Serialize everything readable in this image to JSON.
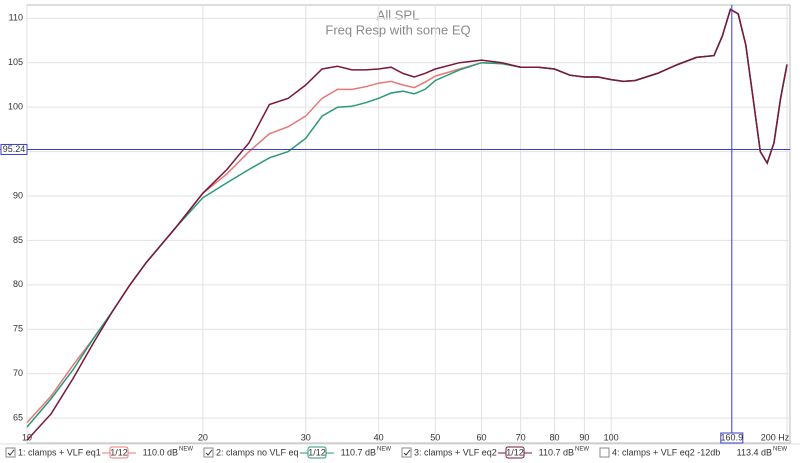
{
  "chart_data": {
    "type": "line",
    "title": "All SPL",
    "subtitle": "Freq Resp with some EQ",
    "log_x": true,
    "grid": true,
    "x": [
      10,
      11,
      12,
      13,
      14,
      15,
      16,
      18,
      20,
      22,
      24,
      26,
      28,
      30,
      32,
      34,
      36,
      38,
      40,
      42,
      44,
      46,
      48,
      50,
      55,
      60,
      65,
      70,
      75,
      80,
      85,
      90,
      95,
      100,
      105,
      110,
      120,
      130,
      140,
      150,
      155,
      160,
      165,
      170,
      175,
      180,
      185,
      190,
      195,
      200
    ],
    "xlim": [
      10,
      200
    ],
    "ylim": [
      62.2,
      111.5
    ],
    "xticks": [
      10,
      20,
      30,
      40,
      50,
      60,
      70,
      80,
      90,
      100,
      {
        "value": 200,
        "label": "200 Hz"
      }
    ],
    "yticks": [
      65,
      70,
      75,
      80,
      85,
      90,
      95,
      100,
      105,
      110
    ],
    "cursor": {
      "x": 160.9,
      "y": 95.24,
      "color": "#3c3cc8"
    },
    "series": [
      {
        "name": "1: clamps + VLF eq1",
        "color": "#e87878",
        "checked": true,
        "smoothing": "1/12",
        "level_label": "110.0 dB",
        "level_tag": "NEW",
        "values": [
          64.5,
          67.5,
          71,
          74,
          77,
          80,
          82.5,
          86.5,
          90.3,
          92.5,
          95,
          97,
          97.8,
          99,
          101,
          102,
          102,
          102.3,
          102.7,
          102.9,
          102.5,
          102.2,
          102.8,
          103.5,
          104.3,
          105,
          104.9,
          104.5,
          104.5,
          104.3,
          103.6,
          103.4,
          103.4,
          103.1,
          102.9,
          103,
          103.8,
          104.8,
          105.6,
          105.8,
          108,
          111,
          110.5,
          107,
          101,
          95,
          93.7,
          96,
          101,
          104.8
        ]
      },
      {
        "name": "2: clamps  no VLF eq",
        "color": "#2a9a78",
        "checked": true,
        "smoothing": "1/12",
        "level_label": "110.7 dB",
        "level_tag": "NEW",
        "values": [
          64,
          67.2,
          70.5,
          74,
          77,
          80,
          82.5,
          86.5,
          89.8,
          91.5,
          93,
          94.3,
          95,
          96.5,
          99,
          100,
          100.1,
          100.5,
          101,
          101.6,
          101.8,
          101.5,
          102,
          103,
          104.2,
          105,
          104.9,
          104.5,
          104.5,
          104.3,
          103.6,
          103.4,
          103.4,
          103.1,
          102.9,
          103,
          103.8,
          104.8,
          105.6,
          105.8,
          108,
          111,
          110.5,
          107,
          101,
          95,
          93.7,
          96,
          101,
          104.8
        ]
      },
      {
        "name": "3: clamps + VLF eq2",
        "color": "#7a1838",
        "checked": true,
        "smoothing": "1/12",
        "level_label": "110.7 dB",
        "level_tag": "NEW",
        "values": [
          62.5,
          65.5,
          69.5,
          73.5,
          77,
          80,
          82.5,
          86.5,
          90.3,
          93,
          96,
          100.3,
          101,
          102.5,
          104.3,
          104.6,
          104.2,
          104.2,
          104.3,
          104.5,
          103.8,
          103.4,
          103.8,
          104.3,
          105,
          105.3,
          105,
          104.5,
          104.5,
          104.3,
          103.6,
          103.4,
          103.4,
          103.1,
          102.9,
          103,
          103.8,
          104.8,
          105.6,
          105.8,
          108,
          111,
          110.5,
          107,
          101,
          95,
          93.7,
          96,
          101,
          104.8
        ]
      },
      {
        "name": "4: clamps + VLF eq2 -12db",
        "color": "#e8a040",
        "checked": false,
        "smoothing": "",
        "level_label": "113.4 dB",
        "level_tag": "NEW"
      }
    ]
  }
}
